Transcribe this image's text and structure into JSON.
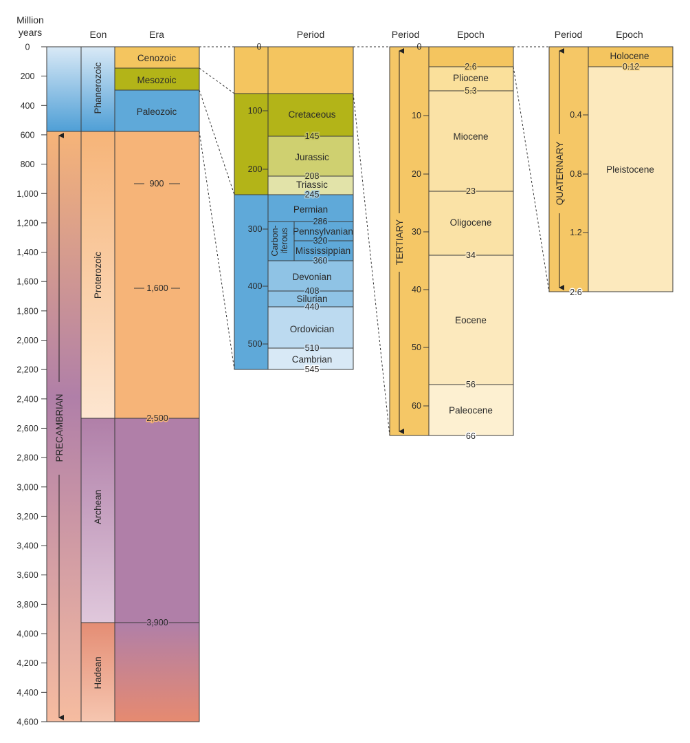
{
  "headers": {
    "million_years": [
      "Million",
      "years"
    ],
    "eon": "Eon",
    "era": "Era",
    "period1": "Period",
    "period2": "Period",
    "epoch2": "Epoch",
    "period3": "Period",
    "epoch3": "Epoch"
  },
  "axis_ticks": [
    "0",
    "200",
    "400",
    "600",
    "800",
    "1,000",
    "1,200",
    "1,400",
    "1,600",
    "1,800",
    "2,000",
    "2,200",
    "2,400",
    "2,600",
    "2,800",
    "3,000",
    "3,200",
    "3,400",
    "3,600",
    "3,800",
    "4,000",
    "4,200",
    "4,400",
    "4,600"
  ],
  "eons": [
    "Phanerozoic",
    "Proterozoic",
    "Archean",
    "Hadean"
  ],
  "precambrian": "PRECAMBRIAN",
  "eras": [
    "Cenozoic",
    "Mesozoic",
    "Paleozoic"
  ],
  "era_boundaries": [
    "900",
    "1,600",
    "2,500",
    "3,900"
  ],
  "phanerozoic_ticks": [
    "0",
    "100",
    "200",
    "300",
    "400",
    "500"
  ],
  "periods": [
    "Cretaceous",
    "Jurassic",
    "Triassic",
    "Permian",
    "Pennsylvanian",
    "Mississippian",
    "Devonian",
    "Silurian",
    "Ordovician",
    "Cambrian"
  ],
  "carboniferous": [
    "Carbon-",
    "iferous"
  ],
  "period_boundaries": [
    "145",
    "208",
    "245",
    "286",
    "320",
    "360",
    "408",
    "440",
    "510",
    "545"
  ],
  "tertiary_label": "TERTIARY",
  "tertiary_ticks": [
    "0",
    "10",
    "20",
    "30",
    "40",
    "50",
    "60"
  ],
  "tertiary_epochs": [
    "Pliocene",
    "Miocene",
    "Oligocene",
    "Eocene",
    "Paleocene"
  ],
  "tertiary_boundaries": [
    "2.6",
    "5.3",
    "23",
    "34",
    "56",
    "66"
  ],
  "quaternary_label": "QUATERNARY",
  "quaternary_ticks": [
    "0.4",
    "0.8",
    "1.2",
    "2.6"
  ],
  "quaternary_epochs": [
    "Holocene",
    "Pleistocene"
  ],
  "quaternary_boundaries": [
    "0.12"
  ],
  "colors": {
    "cenozoic": "#f4c55f",
    "mesozoic": "#b3b418",
    "paleozoic": "#5fa9d9",
    "proterozoic": "#f6b478",
    "archean": "#b07fa8",
    "hadean_bottom": "#e68a70",
    "cretaceous": "#b3b418",
    "jurassic": "#cfd070",
    "triassic": "#e2e3a9",
    "devonian": "#8fc3e5",
    "ordovician": "#bcdaf0",
    "cambrian": "#d8e9f6",
    "tertiary_col": "#f5c766",
    "pliocene": "#fae09b",
    "miocene": "#fae2a6",
    "eocene": "#fce9bd",
    "paleocene": "#fdf0d1"
  }
}
